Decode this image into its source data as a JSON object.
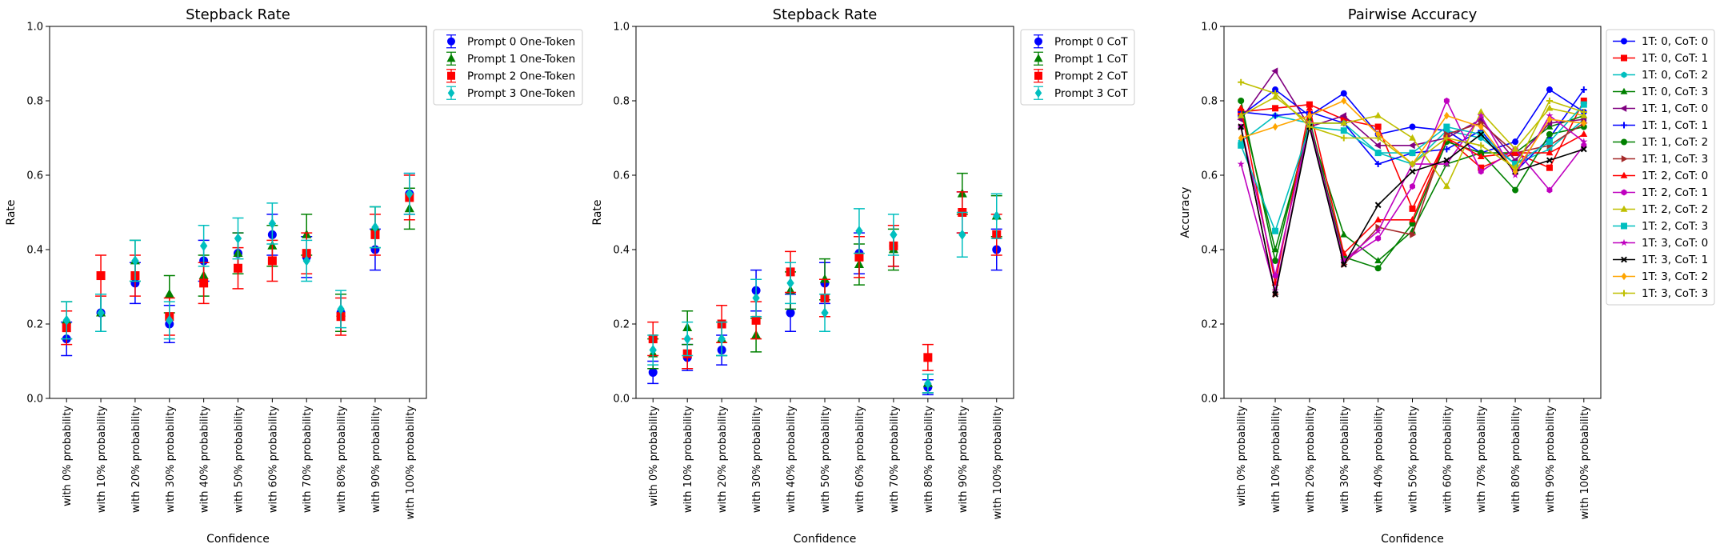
{
  "chart_data": [
    {
      "type": "scatter",
      "title": "Stepback Rate",
      "xlabel": "Confidence",
      "ylabel": "Rate",
      "ylim": [
        0,
        1.0
      ],
      "yticks": [
        "0.0",
        "0.2",
        "0.4",
        "0.6",
        "0.8",
        "1.0"
      ],
      "grid": false,
      "legend_position": "outside-top-right",
      "categories": [
        "with 0% probability",
        "with 10% probability",
        "with 20% probability",
        "with 30% probability",
        "with 40% probability",
        "with 50% probability",
        "with 60% probability",
        "with 70% probability",
        "with 80% probability",
        "with 90% probability",
        "with 100% probability"
      ],
      "series": [
        {
          "name": "Prompt 0 One-Token",
          "color": "#0000ff",
          "marker": "circle",
          "values": [
            0.16,
            0.23,
            0.31,
            0.2,
            0.37,
            0.39,
            0.44,
            0.38,
            0.23,
            0.4,
            0.55
          ],
          "errors": [
            0.045,
            0.05,
            0.055,
            0.05,
            0.055,
            0.055,
            0.055,
            0.055,
            0.05,
            0.055,
            0.055
          ]
        },
        {
          "name": "Prompt 1 One-Token",
          "color": "#008000",
          "marker": "triangle",
          "values": [
            0.21,
            0.23,
            0.37,
            0.28,
            0.33,
            0.39,
            0.41,
            0.44,
            0.23,
            0.46,
            0.51
          ],
          "errors": [
            0.05,
            0.05,
            0.055,
            0.05,
            0.055,
            0.055,
            0.055,
            0.055,
            0.05,
            0.055,
            0.055
          ]
        },
        {
          "name": "Prompt 2 One-Token",
          "color": "#ff0000",
          "marker": "square",
          "values": [
            0.19,
            0.33,
            0.33,
            0.22,
            0.31,
            0.35,
            0.37,
            0.39,
            0.22,
            0.44,
            0.54
          ],
          "errors": [
            0.045,
            0.055,
            0.055,
            0.05,
            0.055,
            0.055,
            0.055,
            0.055,
            0.05,
            0.055,
            0.06
          ]
        },
        {
          "name": "Prompt 3 One-Token",
          "color": "#00bfbf",
          "marker": "diamond",
          "values": [
            0.21,
            0.23,
            0.37,
            0.21,
            0.41,
            0.43,
            0.47,
            0.37,
            0.24,
            0.46,
            0.55
          ],
          "errors": [
            0.05,
            0.05,
            0.055,
            0.05,
            0.055,
            0.055,
            0.055,
            0.055,
            0.05,
            0.055,
            0.055
          ]
        }
      ]
    },
    {
      "type": "scatter",
      "title": "Stepback Rate",
      "xlabel": "Confidence",
      "ylabel": "Rate",
      "ylim": [
        0,
        1.0
      ],
      "yticks": [
        "0.0",
        "0.2",
        "0.4",
        "0.6",
        "0.8",
        "1.0"
      ],
      "grid": false,
      "legend_position": "outside-top-right",
      "categories": [
        "with 0% probability",
        "with 10% probability",
        "with 20% probability",
        "with 30% probability",
        "with 40% probability",
        "with 50% probability",
        "with 60% probability",
        "with 70% probability",
        "with 80% probability",
        "with 90% probability",
        "with 100% probability"
      ],
      "series": [
        {
          "name": "Prompt 0 CoT",
          "color": "#0000ff",
          "marker": "circle",
          "values": [
            0.07,
            0.11,
            0.13,
            0.29,
            0.23,
            0.31,
            0.39,
            0.41,
            0.03,
            0.5,
            0.4
          ],
          "errors": [
            0.03,
            0.035,
            0.04,
            0.055,
            0.05,
            0.055,
            0.055,
            0.055,
            0.02,
            0.055,
            0.055
          ]
        },
        {
          "name": "Prompt 1 CoT",
          "color": "#008000",
          "marker": "triangle",
          "values": [
            0.12,
            0.19,
            0.16,
            0.17,
            0.29,
            0.32,
            0.36,
            0.4,
            0.04,
            0.55,
            0.49
          ],
          "errors": [
            0.04,
            0.045,
            0.045,
            0.045,
            0.05,
            0.055,
            0.055,
            0.055,
            0.025,
            0.055,
            0.055
          ]
        },
        {
          "name": "Prompt 2 CoT",
          "color": "#ff0000",
          "marker": "square",
          "values": [
            0.16,
            0.12,
            0.2,
            0.21,
            0.34,
            0.27,
            0.38,
            0.41,
            0.11,
            0.5,
            0.44
          ],
          "errors": [
            0.045,
            0.04,
            0.05,
            0.05,
            0.055,
            0.05,
            0.055,
            0.055,
            0.035,
            0.055,
            0.055
          ]
        },
        {
          "name": "Prompt 3 CoT",
          "color": "#00bfbf",
          "marker": "diamond",
          "values": [
            0.13,
            0.16,
            0.16,
            0.27,
            0.31,
            0.23,
            0.45,
            0.44,
            0.04,
            0.44,
            0.49
          ],
          "errors": [
            0.04,
            0.045,
            0.045,
            0.05,
            0.055,
            0.05,
            0.06,
            0.055,
            0.025,
            0.06,
            0.06
          ]
        }
      ]
    },
    {
      "type": "line",
      "title": "Pairwise Accuracy",
      "xlabel": "Confidence",
      "ylabel": "Accuracy",
      "ylim": [
        0,
        1.0
      ],
      "yticks": [
        "0.0",
        "0.2",
        "0.4",
        "0.6",
        "0.8",
        "1.0"
      ],
      "grid": false,
      "legend_position": "outside-top-right",
      "categories": [
        "with 0% probability",
        "with 10% probability",
        "with 20% probability",
        "with 30% probability",
        "with 40% probability",
        "with 50% probability",
        "with 60% probability",
        "with 70% probability",
        "with 80% probability",
        "with 90% probability",
        "with 100% probability"
      ],
      "series": [
        {
          "name": "1T: 0, CoT: 0",
          "color": "#0000ff",
          "marker": "circle",
          "values": [
            0.76,
            0.83,
            0.76,
            0.82,
            0.71,
            0.73,
            0.72,
            0.66,
            0.69,
            0.83,
            0.77
          ]
        },
        {
          "name": "1T: 0, CoT: 1",
          "color": "#ff0000",
          "marker": "square",
          "values": [
            0.77,
            0.78,
            0.79,
            0.75,
            0.73,
            0.51,
            0.7,
            0.62,
            0.66,
            0.62,
            0.8
          ]
        },
        {
          "name": "1T: 0, CoT: 2",
          "color": "#00bfbf",
          "marker": "hexagon",
          "values": [
            0.69,
            0.76,
            0.74,
            0.74,
            0.66,
            0.63,
            0.72,
            0.7,
            0.63,
            0.67,
            0.75
          ]
        },
        {
          "name": "1T: 0, CoT: 3",
          "color": "#008000",
          "marker": "triangle",
          "values": [
            0.78,
            0.4,
            0.73,
            0.44,
            0.37,
            0.45,
            0.63,
            0.66,
            0.66,
            0.73,
            0.76
          ]
        },
        {
          "name": "1T: 1, CoT: 0",
          "color": "#800080",
          "marker": "tri-left",
          "values": [
            0.75,
            0.88,
            0.73,
            0.76,
            0.68,
            0.68,
            0.7,
            0.75,
            0.64,
            0.74,
            0.75
          ]
        },
        {
          "name": "1T: 1, CoT: 1",
          "color": "#0000ff",
          "marker": "plus",
          "values": [
            0.77,
            0.76,
            0.77,
            0.74,
            0.63,
            0.66,
            0.67,
            0.72,
            0.61,
            0.7,
            0.83
          ]
        },
        {
          "name": "1T: 1, CoT: 2",
          "color": "#008000",
          "marker": "circle",
          "values": [
            0.8,
            0.37,
            0.75,
            0.38,
            0.35,
            0.47,
            0.69,
            0.66,
            0.56,
            0.71,
            0.73
          ]
        },
        {
          "name": "1T: 1, CoT: 3",
          "color": "#a52a2a",
          "marker": "tri-right",
          "values": [
            0.73,
            0.28,
            0.74,
            0.36,
            0.46,
            0.44,
            0.71,
            0.74,
            0.66,
            0.68,
            0.74
          ]
        },
        {
          "name": "1T: 2, CoT: 0",
          "color": "#ff0000",
          "marker": "triangle",
          "values": [
            0.78,
            0.31,
            0.78,
            0.39,
            0.48,
            0.48,
            0.7,
            0.65,
            0.66,
            0.66,
            0.71
          ]
        },
        {
          "name": "1T: 2, CoT: 1",
          "color": "#bf00bf",
          "marker": "hexagon",
          "values": [
            0.73,
            0.33,
            0.74,
            0.37,
            0.43,
            0.57,
            0.8,
            0.61,
            0.67,
            0.56,
            0.68
          ]
        },
        {
          "name": "1T: 2, CoT: 2",
          "color": "#bfbf00",
          "marker": "triangle",
          "values": [
            0.76,
            0.81,
            0.74,
            0.74,
            0.76,
            0.7,
            0.57,
            0.77,
            0.67,
            0.78,
            0.76
          ]
        },
        {
          "name": "1T: 2, CoT: 3",
          "color": "#00bfbf",
          "marker": "square",
          "values": [
            0.68,
            0.45,
            0.73,
            0.72,
            0.66,
            0.66,
            0.73,
            0.71,
            0.63,
            0.69,
            0.79
          ]
        },
        {
          "name": "1T: 3, CoT: 0",
          "color": "#bf00bf",
          "marker": "star",
          "values": [
            0.63,
            0.29,
            0.73,
            0.37,
            0.45,
            0.63,
            0.63,
            0.76,
            0.6,
            0.76,
            0.69
          ]
        },
        {
          "name": "1T: 3, CoT: 1",
          "color": "#000000",
          "marker": "x",
          "values": [
            0.73,
            0.28,
            0.73,
            0.36,
            0.52,
            0.61,
            0.64,
            0.71,
            0.61,
            0.64,
            0.67
          ]
        },
        {
          "name": "1T: 3, CoT: 2",
          "color": "#ffa500",
          "marker": "diamond",
          "values": [
            0.7,
            0.73,
            0.76,
            0.8,
            0.71,
            0.63,
            0.76,
            0.73,
            0.61,
            0.75,
            0.74
          ]
        },
        {
          "name": "1T: 3, CoT: 3",
          "color": "#bfbf00",
          "marker": "plus",
          "values": [
            0.85,
            0.82,
            0.73,
            0.7,
            0.7,
            0.63,
            0.7,
            0.68,
            0.62,
            0.8,
            0.77
          ]
        }
      ]
    }
  ]
}
